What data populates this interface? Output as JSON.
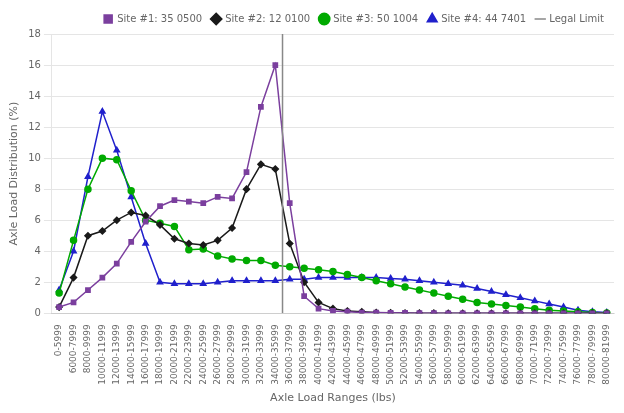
{
  "chart_data": {
    "type": "line",
    "xlabel": "Axle Load Ranges (lbs)",
    "ylabel": "Axle Load Distribution (%)",
    "categories": [
      "0-5999",
      "6000-7999",
      "8000-9999",
      "10000-11999",
      "12000-13999",
      "14000-15999",
      "16000-17999",
      "18000-19999",
      "20000-21999",
      "22000-23999",
      "24000-25999",
      "26000-27999",
      "28000-29999",
      "30000-31999",
      "32000-33999",
      "34000-35999",
      "36000-37999",
      "38000-39999",
      "40000-41999",
      "42000-43999",
      "44000-45999",
      "46000-47999",
      "48000-49999",
      "50000-51999",
      "52000-53999",
      "54000-55999",
      "56000-57999",
      "58000-59999",
      "60000-61999",
      "62000-63999",
      "64000-65999",
      "66000-67999",
      "68000-69999",
      "70000-71999",
      "72000-73999",
      "74000-75999",
      "76000-77999",
      "78000-79999",
      "80000-81999"
    ],
    "series": [
      {
        "name": "Site #1: 35 0500",
        "color": "#7B3F9E",
        "marker": "square",
        "values": [
          0.4,
          0.7,
          1.5,
          2.3,
          3.2,
          4.6,
          5.9,
          6.9,
          7.3,
          7.2,
          7.1,
          7.5,
          7.4,
          9.1,
          13.3,
          16.0,
          7.1,
          1.1,
          0.3,
          0.15,
          0.1,
          0.05,
          0.05,
          0.03,
          0.02,
          0.01,
          0.01,
          0.0,
          0.0,
          0.0,
          0.0,
          0.0,
          0.0,
          0.0,
          0.0,
          0.0,
          0.0,
          0.0,
          0.0
        ]
      },
      {
        "name": "Site #2: 12 0100",
        "color": "#1a1a1a",
        "marker": "diamond",
        "values": [
          0.4,
          2.3,
          5.0,
          5.3,
          6.0,
          6.5,
          6.3,
          5.7,
          4.8,
          4.5,
          4.4,
          4.7,
          5.5,
          8.0,
          9.6,
          9.3,
          4.5,
          2.0,
          0.7,
          0.3,
          0.15,
          0.1,
          0.05,
          0.03,
          0.02,
          0.01,
          0.01,
          0.0,
          0.0,
          0.0,
          0.0,
          0.0,
          0.0,
          0.0,
          0.0,
          0.0,
          0.0,
          0.0,
          0.0
        ]
      },
      {
        "name": "Site #3: 50 1004",
        "color": "#00AA00",
        "marker": "circle",
        "values": [
          1.3,
          4.7,
          8.0,
          10.0,
          9.9,
          7.9,
          6.0,
          5.8,
          5.6,
          4.1,
          4.15,
          3.7,
          3.5,
          3.4,
          3.4,
          3.1,
          3.0,
          2.9,
          2.8,
          2.7,
          2.5,
          2.3,
          2.1,
          1.9,
          1.7,
          1.5,
          1.3,
          1.1,
          0.9,
          0.7,
          0.6,
          0.5,
          0.4,
          0.3,
          0.2,
          0.15,
          0.1,
          0.05,
          0.02
        ]
      },
      {
        "name": "Site #4: 44 7401",
        "color": "#2020CC",
        "marker": "triangle",
        "values": [
          1.5,
          4.0,
          8.8,
          13.0,
          10.5,
          7.5,
          4.5,
          2.0,
          1.9,
          1.9,
          1.9,
          2.0,
          2.1,
          2.1,
          2.1,
          2.1,
          2.2,
          2.2,
          2.3,
          2.3,
          2.3,
          2.3,
          2.3,
          2.25,
          2.2,
          2.1,
          2.0,
          1.9,
          1.8,
          1.6,
          1.4,
          1.2,
          1.0,
          0.8,
          0.6,
          0.4,
          0.2,
          0.1,
          0.05
        ]
      }
    ],
    "annotations": [
      {
        "type": "vline",
        "x": 15.5,
        "label": "Legal Limit",
        "color": "#888888"
      }
    ],
    "ylim": [
      0,
      18
    ],
    "yticks": [
      0,
      2,
      4,
      6,
      8,
      10,
      12,
      14,
      16,
      18
    ],
    "grid": "y",
    "legend": "upper right"
  }
}
